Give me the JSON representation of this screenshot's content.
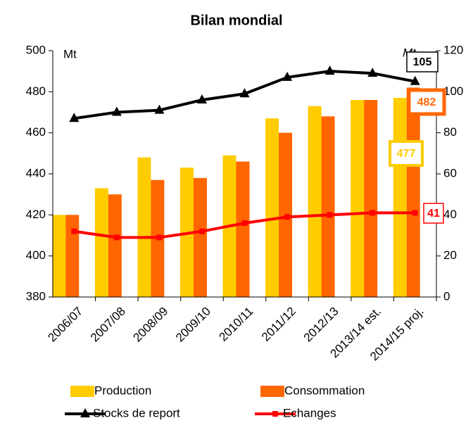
{
  "chart_data": {
    "type": "bar",
    "title": "Bilan mondial",
    "y_label": "Mt",
    "y2_label": "Mt",
    "categories": [
      "2006/07",
      "2007/08",
      "2008/09",
      "2009/10",
      "2010/11",
      "2011/12",
      "2012/13",
      "2013/14 est.",
      "2014/15 proj."
    ],
    "series": [
      {
        "name": "Production",
        "color": "#FFCC00",
        "type": "bar",
        "values": [
          420,
          433,
          448,
          443,
          449,
          467,
          473,
          476,
          477
        ]
      },
      {
        "name": "Consommation",
        "color": "#FF6600",
        "type": "bar",
        "values": [
          420,
          430,
          437,
          438,
          446,
          460,
          468,
          476,
          482
        ]
      },
      {
        "name": "Stocks de report",
        "color": "#000000",
        "type": "line",
        "axis": "y2",
        "values": [
          87,
          90,
          91,
          96,
          99,
          107,
          110,
          109,
          105
        ]
      },
      {
        "name": "Echanges",
        "color": "#FF0000",
        "type": "line",
        "axis": "y2",
        "values": [
          32,
          29,
          29,
          32,
          36,
          39,
          40,
          41,
          41
        ]
      }
    ],
    "ylim": [
      380,
      500
    ],
    "yticks": [
      380,
      400,
      420,
      440,
      460,
      480,
      500
    ],
    "y2lim": [
      0,
      120
    ],
    "y2ticks": [
      0,
      20,
      40,
      60,
      80,
      100,
      120
    ]
  }
}
